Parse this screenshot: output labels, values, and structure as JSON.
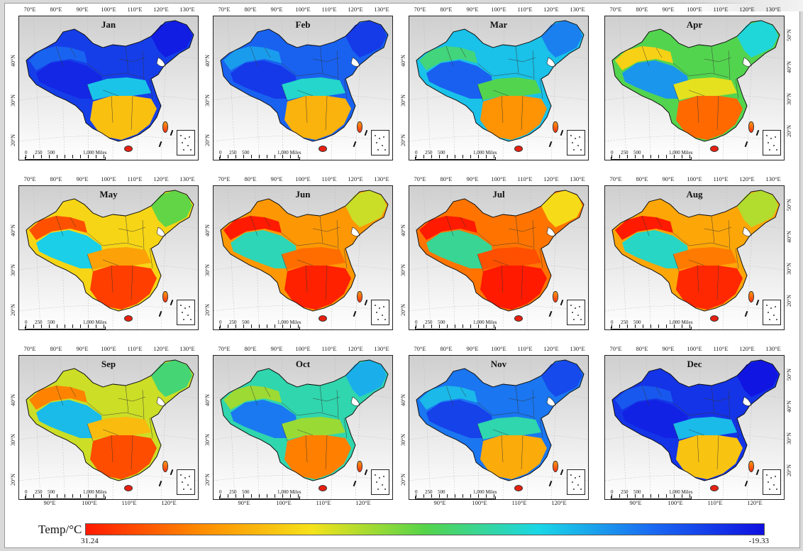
{
  "months": [
    "Jan",
    "Feb",
    "Mar",
    "Apr",
    "May",
    "Jun",
    "Jul",
    "Aug",
    "Sep",
    "Oct",
    "Nov",
    "Dec"
  ],
  "warmth": [
    0.1,
    0.18,
    0.35,
    0.55,
    0.75,
    0.88,
    0.95,
    0.85,
    0.68,
    0.45,
    0.22,
    0.08
  ],
  "lon_top": [
    "70°E",
    "80°E",
    "90°E",
    "100°E",
    "110°E",
    "120°E",
    "130°E"
  ],
  "lon_bottom": [
    "90°E",
    "100°E",
    "110°E",
    "120°E"
  ],
  "lat_labels": [
    "40°N",
    "30°N",
    "20°N"
  ],
  "lat_labels_right": [
    "50°N",
    "40°N",
    "30°N",
    "20°N"
  ],
  "scale_labels": [
    "0",
    "250",
    "500",
    "1,000 Miles"
  ],
  "legend": {
    "title": "Temp/°C",
    "max": "31.24",
    "min": "-19.33",
    "colors": [
      "#ff1a00",
      "#ff8a00",
      "#f5e21a",
      "#55d44a",
      "#1ad7e6",
      "#1a6bf2",
      "#1010e0"
    ]
  }
}
